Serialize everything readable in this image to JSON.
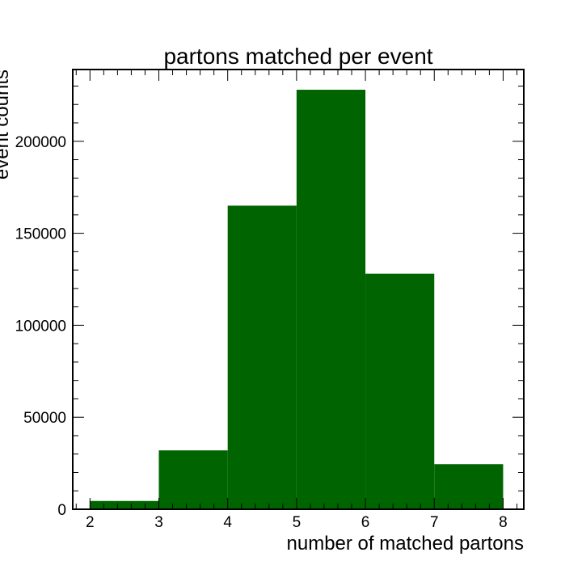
{
  "chart_data": {
    "type": "bar",
    "title": "partons matched per event",
    "xlabel": "number of matched partons",
    "ylabel": "event counts",
    "bin_edges": [
      2,
      3,
      4,
      5,
      6,
      7,
      8
    ],
    "values": [
      4500,
      32000,
      165000,
      228000,
      128000,
      24500
    ],
    "xlim": [
      1.75,
      8.3
    ],
    "ylim": [
      0,
      239000
    ],
    "xticks": [
      2,
      3,
      4,
      5,
      6,
      7,
      8
    ],
    "yticks": [
      0,
      50000,
      100000,
      150000,
      200000
    ],
    "bar_color": "#006400",
    "grid": false,
    "legend": "none"
  }
}
